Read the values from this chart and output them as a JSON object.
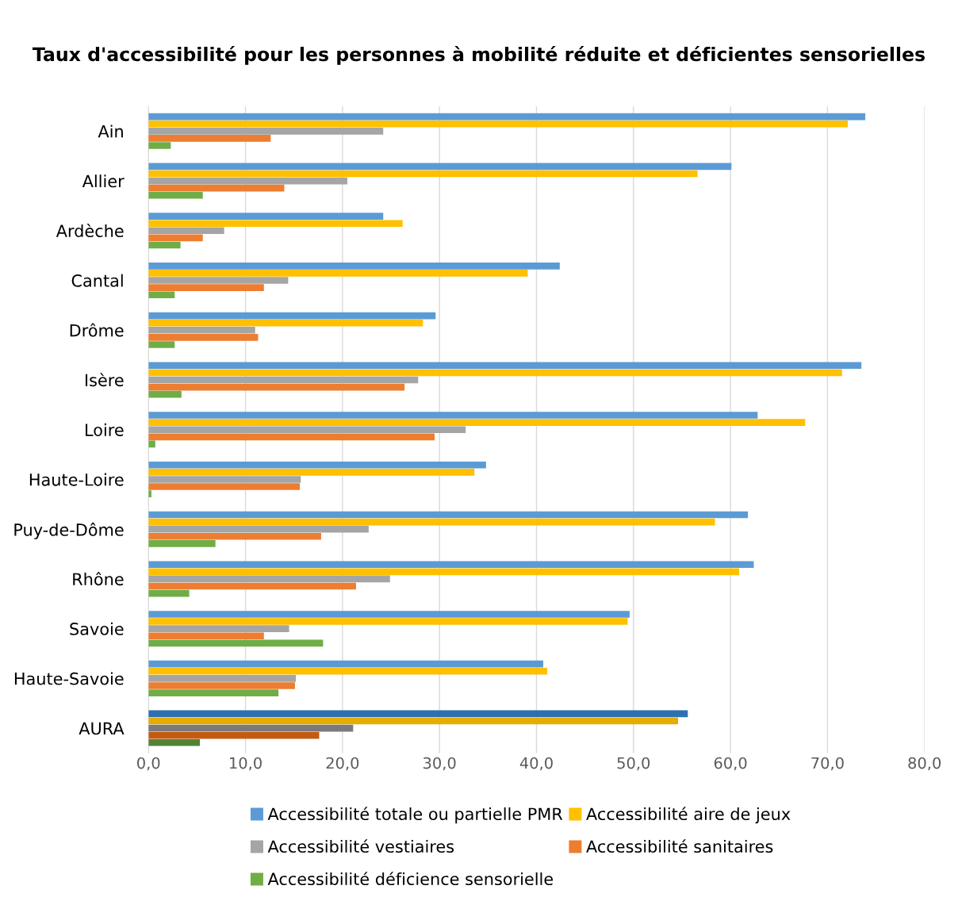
{
  "chart_data": {
    "type": "bar",
    "orientation": "horizontal",
    "title": "Taux d'accessibilité pour les personnes à mobilité réduite et déficientes sensorielles",
    "categories": [
      "Ain",
      "Allier",
      "Ardèche",
      "Cantal",
      "Drôme",
      "Isère",
      "Loire",
      "Haute-Loire",
      "Puy-de-Dôme",
      "Rhône",
      "Savoie",
      "Haute-Savoie",
      "AURA"
    ],
    "series": [
      {
        "name": "Accessibilité totale ou partielle PMR",
        "color": "#5b9bd5",
        "colors": [
          "#5b9bd5",
          "#5b9bd5",
          "#5b9bd5",
          "#5b9bd5",
          "#5b9bd5",
          "#5b9bd5",
          "#5b9bd5",
          "#5b9bd5",
          "#5b9bd5",
          "#5b9bd5",
          "#5b9bd5",
          "#5b9bd5",
          "#2e6fb0"
        ],
        "values": [
          73.9,
          60.1,
          24.2,
          42.4,
          29.6,
          73.5,
          62.8,
          34.8,
          61.8,
          62.4,
          49.6,
          40.7,
          55.6
        ]
      },
      {
        "name": "Accessibilité aire de jeux",
        "color": "#ffc000",
        "colors": [
          "#ffc000",
          "#ffc000",
          "#ffc000",
          "#ffc000",
          "#ffc000",
          "#ffc000",
          "#ffc000",
          "#ffc000",
          "#ffc000",
          "#ffc000",
          "#ffc000",
          "#ffc000",
          "#e6ac00"
        ],
        "values": [
          72.1,
          56.6,
          26.2,
          39.1,
          28.3,
          71.5,
          67.7,
          33.6,
          58.4,
          60.9,
          49.4,
          41.1,
          54.6
        ]
      },
      {
        "name": "Accessibilité vestiaires",
        "color": "#a5a5a5",
        "colors": [
          "#a5a5a5",
          "#a5a5a5",
          "#a5a5a5",
          "#a5a5a5",
          "#a5a5a5",
          "#a5a5a5",
          "#a5a5a5",
          "#a5a5a5",
          "#a5a5a5",
          "#a5a5a5",
          "#a5a5a5",
          "#a5a5a5",
          "#7a7a7a"
        ],
        "values": [
          24.2,
          20.5,
          7.8,
          14.4,
          11.0,
          27.8,
          32.7,
          15.7,
          22.7,
          24.9,
          14.5,
          15.2,
          21.1
        ]
      },
      {
        "name": "Accessibilité sanitaires",
        "color": "#ed7d31",
        "colors": [
          "#ed7d31",
          "#ed7d31",
          "#ed7d31",
          "#ed7d31",
          "#ed7d31",
          "#ed7d31",
          "#ed7d31",
          "#ed7d31",
          "#ed7d31",
          "#ed7d31",
          "#ed7d31",
          "#ed7d31",
          "#c55a11"
        ],
        "values": [
          12.6,
          14.0,
          5.6,
          11.9,
          11.3,
          26.4,
          29.5,
          15.6,
          17.8,
          21.4,
          11.9,
          15.1,
          17.6
        ]
      },
      {
        "name": "Accessibilité déficience sensorielle",
        "color": "#70ad47",
        "colors": [
          "#70ad47",
          "#70ad47",
          "#70ad47",
          "#70ad47",
          "#70ad47",
          "#70ad47",
          "#70ad47",
          "#70ad47",
          "#70ad47",
          "#70ad47",
          "#70ad47",
          "#70ad47",
          "#548235"
        ],
        "values": [
          2.3,
          5.6,
          3.3,
          2.7,
          2.7,
          3.4,
          0.7,
          0.3,
          6.9,
          4.2,
          18.0,
          13.4,
          5.3
        ]
      }
    ],
    "xlim": [
      0,
      80
    ],
    "xticks": [
      {
        "value": 0,
        "label": "0,0"
      },
      {
        "value": 10,
        "label": "10,0"
      },
      {
        "value": 20,
        "label": "20,0"
      },
      {
        "value": 30,
        "label": "30,0"
      },
      {
        "value": 40,
        "label": "40,0"
      },
      {
        "value": 50,
        "label": "50,0"
      },
      {
        "value": 60,
        "label": "60,0"
      },
      {
        "value": 70,
        "label": "70,0"
      },
      {
        "value": 80,
        "label": "80,0"
      }
    ],
    "grid": "x",
    "legend": "bottom"
  }
}
